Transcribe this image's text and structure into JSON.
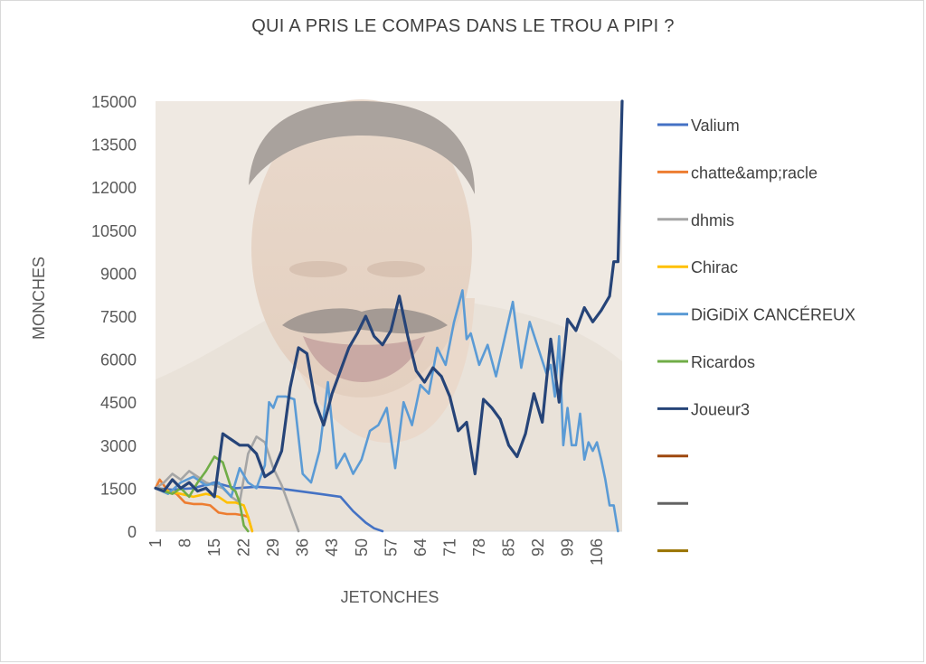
{
  "chart_data": {
    "type": "line",
    "title": "QUI A PRIS LE COMPAS DANS LE TROU A PIPI ?",
    "xlabel": "JETONCHES",
    "ylabel": "MONCHES",
    "ylim": [
      0,
      15000
    ],
    "yticks": [
      "0",
      "1500",
      "3000",
      "4500",
      "6000",
      "7500",
      "9000",
      "10500",
      "12000",
      "13500",
      "15000"
    ],
    "xticks": [
      "1",
      "8",
      "15",
      "22",
      "29",
      "36",
      "43",
      "50",
      "57",
      "64",
      "71",
      "78",
      "85",
      "92",
      "99",
      "106"
    ],
    "x_range": [
      1,
      112
    ],
    "legend_position": "right",
    "background_image": "laughing-man-photo",
    "series": [
      {
        "name": "Valium",
        "color": "#4472c4",
        "x": [
          1,
          5,
          10,
          15,
          20,
          25,
          30,
          35,
          40,
          45,
          48,
          51,
          53,
          55
        ],
        "values": [
          1500,
          1450,
          1500,
          1700,
          1500,
          1550,
          1500,
          1400,
          1300,
          1200,
          700,
          300,
          100,
          0
        ]
      },
      {
        "name": "chatte&amp;racle",
        "color": "#ed7d31",
        "x": [
          1,
          2,
          4,
          6,
          8,
          10,
          12,
          14,
          16,
          18,
          20,
          22,
          23,
          24
        ],
        "values": [
          1500,
          1800,
          1400,
          1300,
          1000,
          950,
          950,
          900,
          650,
          600,
          600,
          550,
          500,
          0
        ]
      },
      {
        "name": "dhmis",
        "color": "#a5a5a5",
        "x": [
          1,
          3,
          5,
          7,
          9,
          11,
          13,
          15,
          17,
          19,
          21,
          23,
          25,
          27,
          29,
          31,
          33,
          35
        ],
        "values": [
          1500,
          1700,
          2000,
          1800,
          2100,
          1900,
          1700,
          1600,
          1500,
          1200,
          1000,
          2700,
          3300,
          3100,
          2200,
          1600,
          800,
          0
        ]
      },
      {
        "name": "Chirac",
        "color": "#ffc000",
        "x": [
          1,
          4,
          7,
          10,
          13,
          16,
          18,
          20,
          22,
          23,
          24
        ],
        "values": [
          1500,
          1400,
          1300,
          1200,
          1300,
          1200,
          1000,
          1000,
          900,
          500,
          0
        ]
      },
      {
        "name": "DiGiDiX CANCÉREUX",
        "color": "#5b9bd5",
        "x": [
          1,
          4,
          7,
          10,
          13,
          16,
          19,
          21,
          23,
          25,
          27,
          28,
          29,
          30,
          32,
          34,
          36,
          38,
          40,
          42,
          44,
          46,
          48,
          50,
          52,
          54,
          56,
          58,
          60,
          62,
          64,
          66,
          68,
          70,
          72,
          74,
          75,
          76,
          78,
          80,
          82,
          84,
          86,
          88,
          90,
          92,
          94,
          95,
          96,
          97,
          98,
          99,
          100,
          101,
          102,
          103,
          104,
          105,
          106,
          107,
          108,
          109,
          110,
          111
        ],
        "values": [
          1500,
          1300,
          1700,
          1900,
          1600,
          1700,
          1200,
          2200,
          1700,
          1500,
          2300,
          4500,
          4300,
          4700,
          4700,
          4600,
          2000,
          1700,
          2800,
          5200,
          2200,
          2700,
          2000,
          2500,
          3500,
          3700,
          4300,
          2200,
          4500,
          3700,
          5100,
          4800,
          6400,
          5800,
          7300,
          8400,
          6700,
          6900,
          5800,
          6500,
          5400,
          6700,
          8000,
          5700,
          7300,
          6400,
          5500,
          5800,
          4700,
          6800,
          3000,
          4300,
          3000,
          3000,
          4100,
          2500,
          3100,
          2800,
          3100,
          2500,
          1800,
          900,
          900,
          0
        ]
      },
      {
        "name": "Ricardos",
        "color": "#70ad47",
        "x": [
          1,
          3,
          5,
          7,
          9,
          11,
          13,
          15,
          17,
          19,
          20,
          21,
          22,
          23
        ],
        "values": [
          1500,
          1400,
          1300,
          1500,
          1200,
          1700,
          2100,
          2600,
          2400,
          1500,
          1400,
          1000,
          200,
          0
        ]
      },
      {
        "name": "Joueur3",
        "color": "#264478",
        "x": [
          1,
          3,
          5,
          7,
          9,
          11,
          13,
          15,
          17,
          19,
          21,
          23,
          25,
          27,
          29,
          31,
          33,
          35,
          37,
          39,
          41,
          43,
          45,
          47,
          49,
          51,
          53,
          55,
          57,
          59,
          61,
          63,
          65,
          67,
          69,
          71,
          73,
          75,
          77,
          79,
          81,
          83,
          85,
          87,
          89,
          91,
          93,
          95,
          97,
          99,
          101,
          103,
          105,
          107,
          109,
          110,
          111,
          112
        ],
        "values": [
          1500,
          1400,
          1800,
          1500,
          1700,
          1400,
          1500,
          1200,
          3400,
          3200,
          3000,
          3000,
          2700,
          1900,
          2100,
          2800,
          5000,
          6400,
          6200,
          4500,
          3700,
          4800,
          5600,
          6400,
          6900,
          7500,
          6800,
          6500,
          7000,
          8200,
          6800,
          5600,
          5200,
          5700,
          5400,
          4700,
          3500,
          3800,
          2000,
          4600,
          4300,
          3900,
          3000,
          2600,
          3400,
          4800,
          3800,
          6700,
          4500,
          7400,
          7000,
          7800,
          7300,
          7700,
          8200,
          9400,
          9400,
          15000
        ]
      },
      {
        "name": "",
        "color": "#9e480e",
        "values": []
      },
      {
        "name": "",
        "color": "#636363",
        "values": []
      },
      {
        "name": "",
        "color": "#997300",
        "values": []
      }
    ]
  }
}
